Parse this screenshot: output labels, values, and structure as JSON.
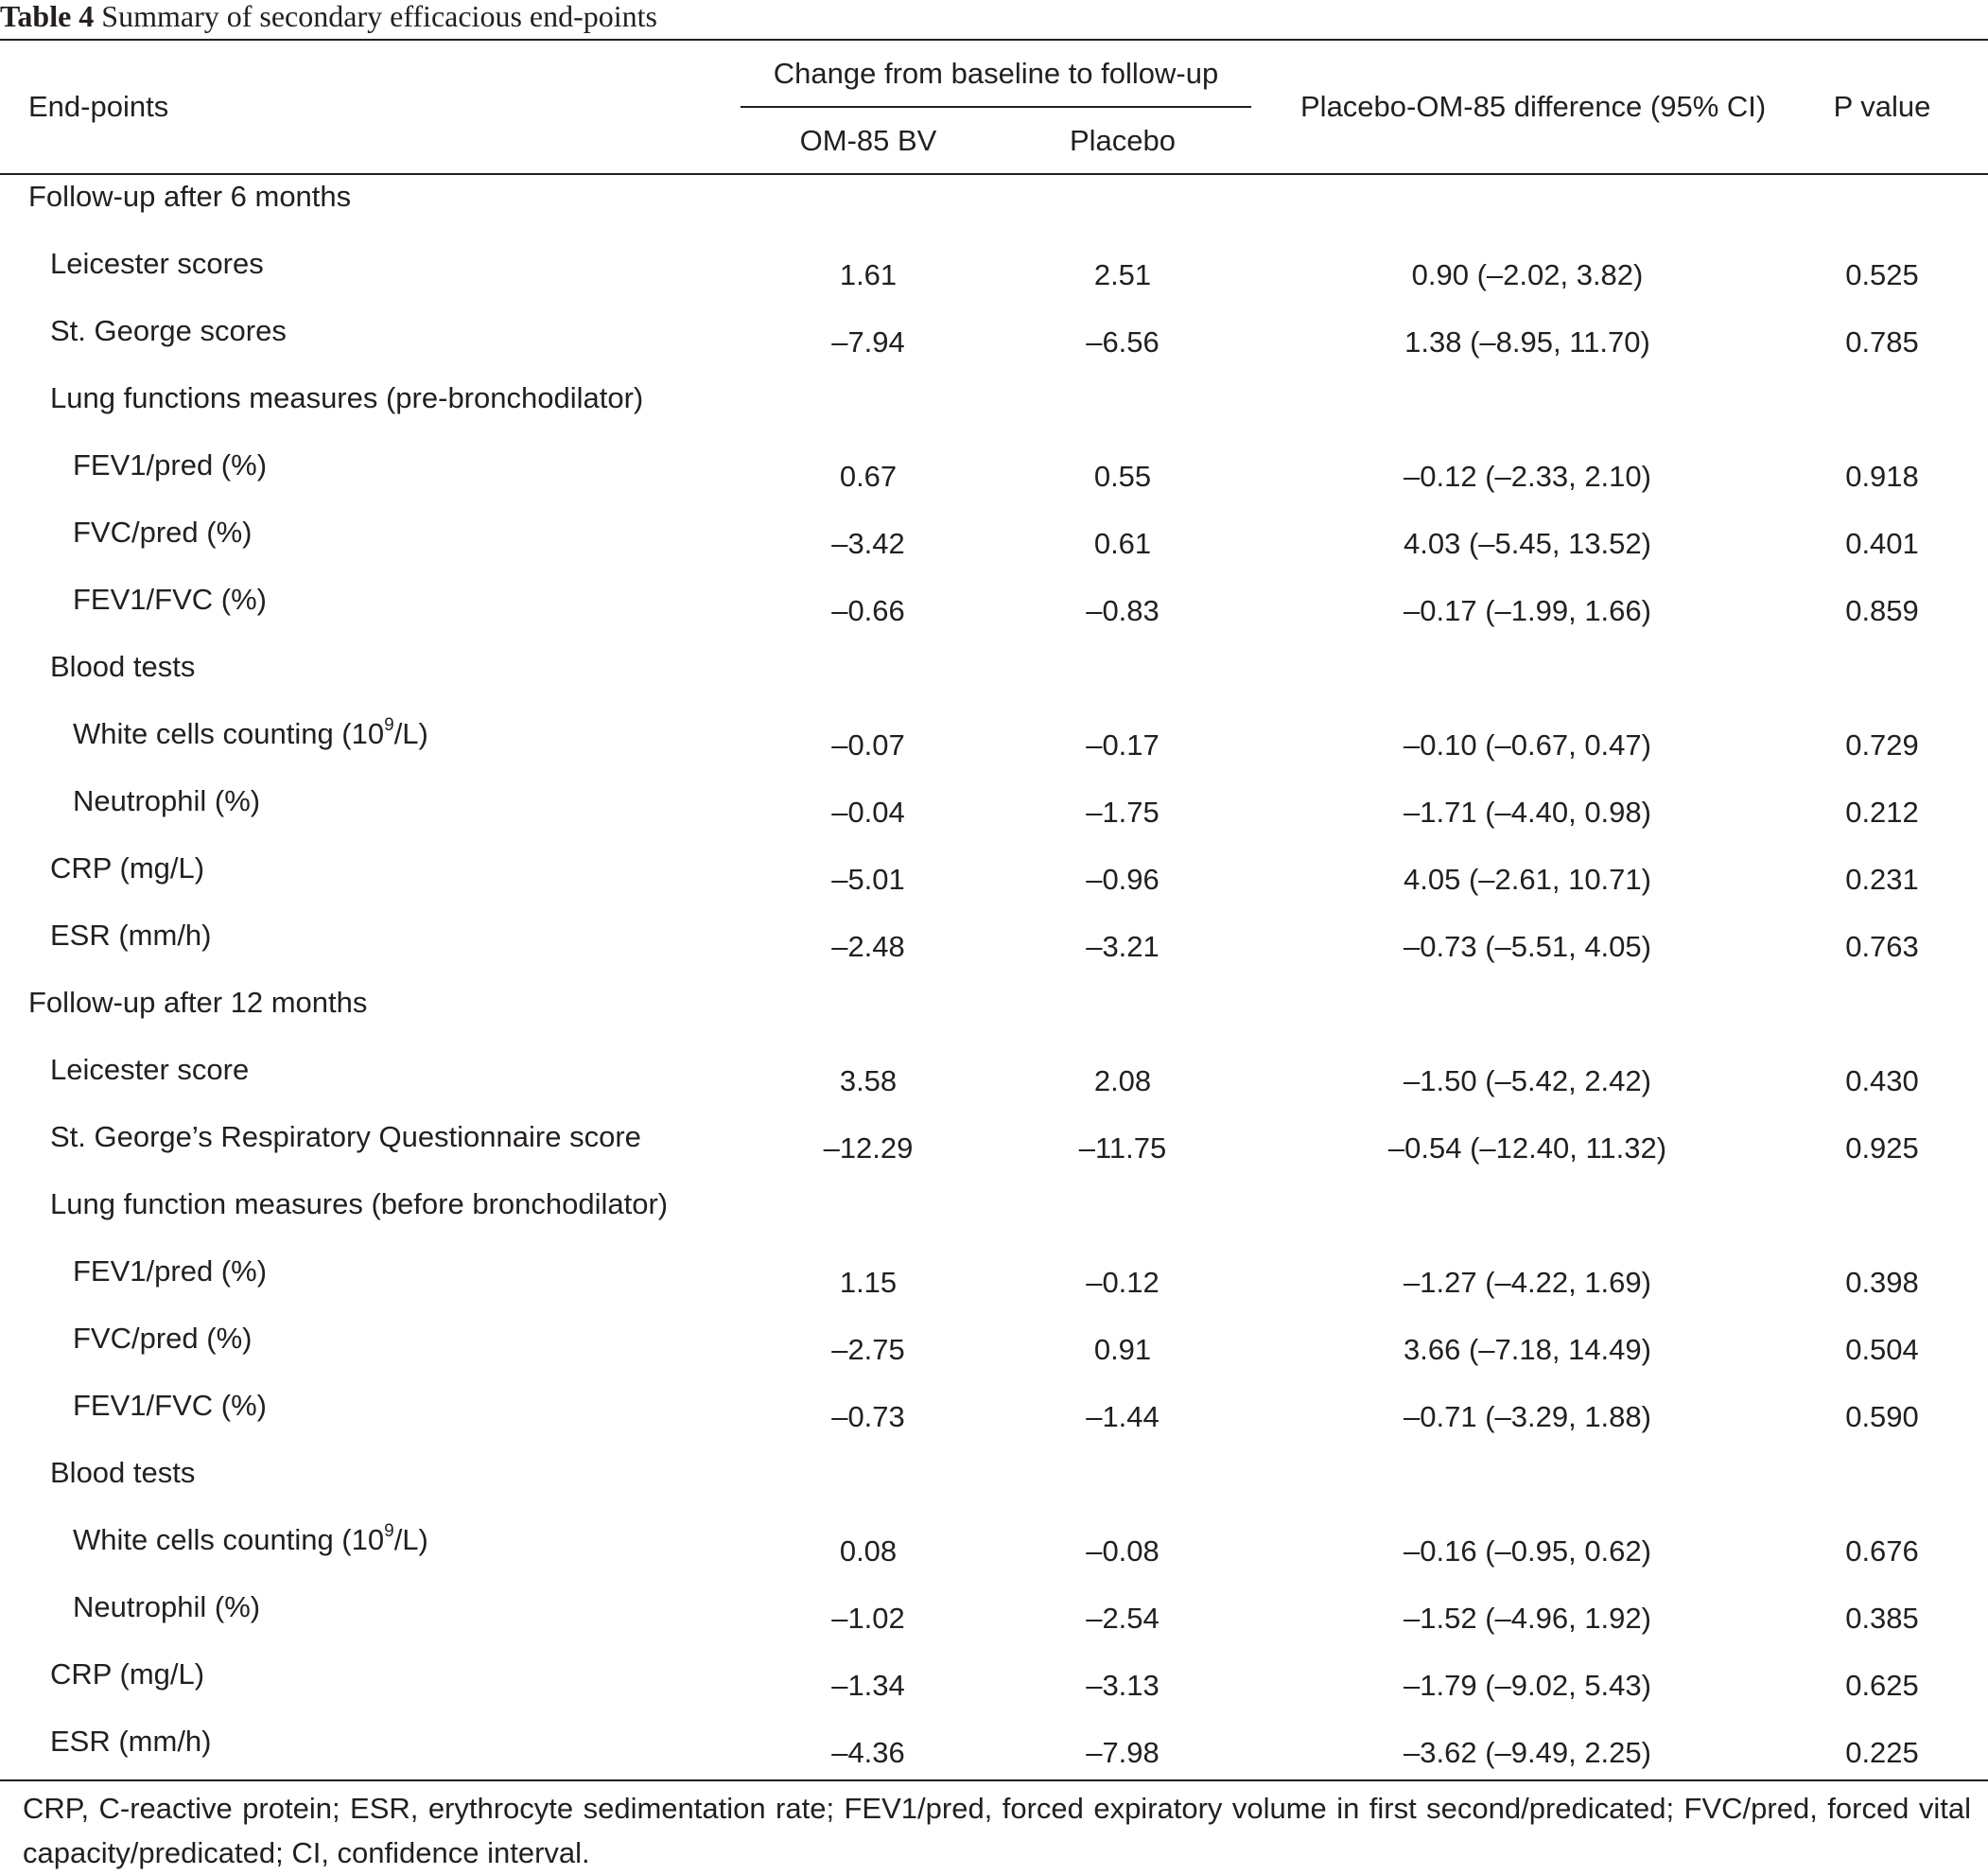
{
  "caption": {
    "label": "Table 4",
    "text": "Summary of secondary efficacious end-points"
  },
  "header": {
    "endpoints": "End-points",
    "change_group": "Change from baseline to follow-up",
    "om85": "OM-85 BV",
    "placebo": "Placebo",
    "difference": "Placebo-OM-85 difference (95% CI)",
    "pvalue": "P value"
  },
  "rows": [
    {
      "label": "Follow-up after 6 months",
      "level": 0
    },
    {
      "label": "Leicester scores",
      "level": 1,
      "om85": "1.61",
      "placebo": "2.51",
      "diff": "0.90 (–2.02, 3.82)",
      "p": "0.525"
    },
    {
      "label": "St. George scores",
      "level": 1,
      "om85": "–7.94",
      "placebo": "–6.56",
      "diff": "1.38 (–8.95, 11.70)",
      "p": "0.785"
    },
    {
      "label": "Lung functions measures (pre-bronchodilator)",
      "level": 1
    },
    {
      "label": "FEV1/pred (%)",
      "level": 2,
      "om85": "0.67",
      "placebo": "0.55",
      "diff": "–0.12 (–2.33, 2.10)",
      "p": "0.918"
    },
    {
      "label": "FVC/pred (%)",
      "level": 2,
      "om85": "–3.42",
      "placebo": "0.61",
      "diff": "4.03 (–5.45, 13.52)",
      "p": "0.401"
    },
    {
      "label": "FEV1/FVC (%)",
      "level": 2,
      "om85": "–0.66",
      "placebo": "–0.83",
      "diff": "–0.17 (–1.99, 1.66)",
      "p": "0.859"
    },
    {
      "label": "Blood tests",
      "level": 1
    },
    {
      "label": "White cells counting (10",
      "sup": "9",
      "suffix": "/L)",
      "level": 2,
      "om85": "–0.07",
      "placebo": "–0.17",
      "diff": "–0.10 (–0.67, 0.47)",
      "p": "0.729"
    },
    {
      "label": "Neutrophil (%)",
      "level": 2,
      "om85": "–0.04",
      "placebo": "–1.75",
      "diff": "–1.71 (–4.40, 0.98)",
      "p": "0.212"
    },
    {
      "label": "CRP (mg/L)",
      "level": 1,
      "om85": "–5.01",
      "placebo": "–0.96",
      "diff": "4.05 (–2.61, 10.71)",
      "p": "0.231"
    },
    {
      "label": "ESR (mm/h)",
      "level": 1,
      "om85": "–2.48",
      "placebo": "–3.21",
      "diff": "–0.73 (–5.51, 4.05)",
      "p": "0.763"
    },
    {
      "label": "Follow-up after 12 months",
      "level": 0
    },
    {
      "label": "Leicester score",
      "level": 1,
      "om85": "3.58",
      "placebo": "2.08",
      "diff": "–1.50 (–5.42, 2.42)",
      "p": "0.430"
    },
    {
      "label": "St. George’s Respiratory Questionnaire score",
      "level": 1,
      "om85": "–12.29",
      "placebo": "–11.75",
      "diff": "–0.54 (–12.40, 11.32)",
      "p": "0.925"
    },
    {
      "label": "Lung function measures (before bronchodilator)",
      "level": 1
    },
    {
      "label": "FEV1/pred (%)",
      "level": 2,
      "om85": "1.15",
      "placebo": "–0.12",
      "diff": "–1.27 (–4.22, 1.69)",
      "p": "0.398"
    },
    {
      "label": "FVC/pred (%)",
      "level": 2,
      "om85": "–2.75",
      "placebo": "0.91",
      "diff": "3.66 (–7.18, 14.49)",
      "p": "0.504"
    },
    {
      "label": "FEV1/FVC (%)",
      "level": 2,
      "om85": "–0.73",
      "placebo": "–1.44",
      "diff": "–0.71 (–3.29, 1.88)",
      "p": "0.590"
    },
    {
      "label": "Blood tests",
      "level": 1
    },
    {
      "label": "White cells counting (10",
      "sup": "9",
      "suffix": "/L)",
      "level": 2,
      "om85": "0.08",
      "placebo": "–0.08",
      "diff": "–0.16 (–0.95, 0.62)",
      "p": "0.676"
    },
    {
      "label": "Neutrophil (%)",
      "level": 2,
      "om85": "–1.02",
      "placebo": "–2.54",
      "diff": "–1.52 (–4.96, 1.92)",
      "p": "0.385"
    },
    {
      "label": "CRP (mg/L)",
      "level": 1,
      "om85": "–1.34",
      "placebo": "–3.13",
      "diff": "–1.79 (–9.02, 5.43)",
      "p": "0.625"
    },
    {
      "label": "ESR (mm/h)",
      "level": 1,
      "om85": "–4.36",
      "placebo": "–7.98",
      "diff": "–3.62 (–9.49, 2.25)",
      "p": "0.225"
    }
  ],
  "footnote": "CRP, C-reactive protein; ESR, erythrocyte sedimentation rate; FEV1/pred, forced expiratory volume in first second/predicated; FVC/pred, forced vital capacity/predicated; CI, confidence interval."
}
